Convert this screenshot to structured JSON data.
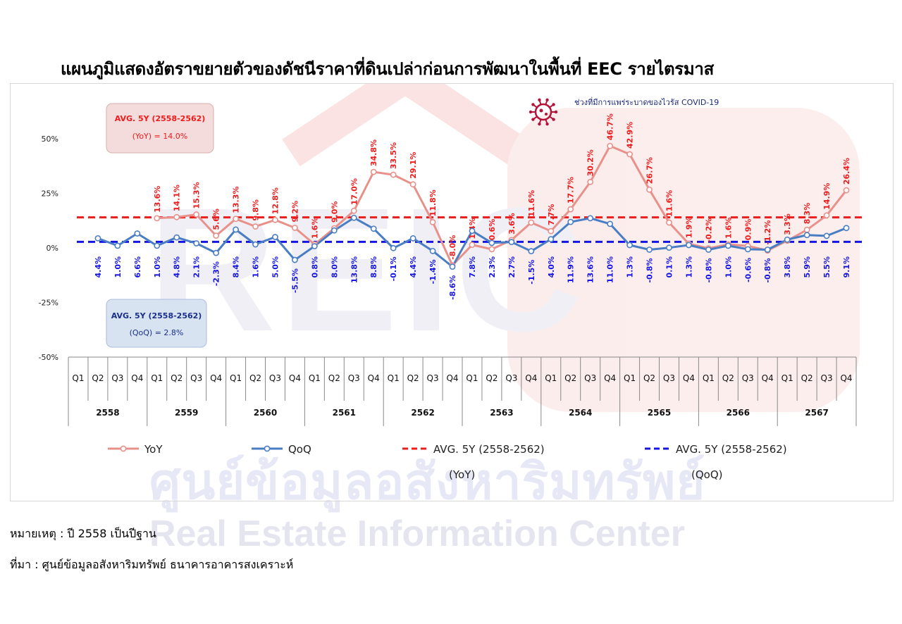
{
  "title": "แผนภูมิแสดงอัตราขยายตัวของดัชนีราคาที่ดินเปล่าก่อนการพัฒนาในพื้นที่ EEC รายไตรมาส",
  "note": "หมายเหตุ : ปี 2558 เป็นปีฐาน",
  "source": "ที่มา : ศูนย์ข้อมูลอสังหาริมทรัพย์ ธนาคารอาคารสงเคราะห์",
  "watermark": {
    "thai": "ศูนย์ข้อมูลอสังหาริมทรัพย์",
    "english": "Real Estate Information Center",
    "logo": "REIC"
  },
  "covid_label": "ช่วงที่มีการแพร่ระบาดของไวรัส COVID-19",
  "colors": {
    "yoy": "#e8908a",
    "qoq": "#4a7ec4",
    "avg_yoy": "#ee1c1c",
    "avg_qoq": "#1414e6",
    "yoy_label": "#ee1c1c",
    "qoq_label": "#1414e6",
    "covid_icon": "#b5123a"
  },
  "chart_data": {
    "type": "line",
    "y_ticks": [
      "50%",
      "25%",
      "0%",
      "-25%",
      "-50%"
    ],
    "y_tick_values": [
      50,
      25,
      0,
      -25,
      -50
    ],
    "ylim": [
      -50,
      50
    ],
    "quarters": [
      "Q1",
      "Q2",
      "Q3",
      "Q4"
    ],
    "years": [
      "2558",
      "2559",
      "2560",
      "2561",
      "2562",
      "2563",
      "2564",
      "2565",
      "2566",
      "2567"
    ],
    "series": [
      {
        "name": "YoY",
        "values": [
          null,
          null,
          null,
          null,
          13.6,
          14.1,
          15.3,
          5.6,
          13.3,
          9.8,
          12.8,
          9.2,
          1.6,
          9.0,
          17.0,
          34.8,
          33.5,
          29.1,
          11.8,
          -8.0,
          1.4,
          -0.6,
          3.6,
          11.6,
          7.7,
          17.7,
          30.2,
          46.7,
          42.9,
          26.7,
          11.6,
          1.9,
          -0.2,
          1.6,
          0.9,
          -1.2,
          3.3,
          8.3,
          14.9,
          26.4
        ],
        "labels": [
          null,
          null,
          null,
          null,
          "13.6%",
          "14.1%",
          "15.3%",
          "5.6%",
          "13.3%",
          "9.8%",
          "12.8%",
          "9.2%",
          "1.6%",
          "9.0%",
          "17.0%",
          "34.8%",
          "33.5%",
          "29.1%",
          "11.8%",
          "-8.0%",
          "1.4%",
          "-0.6%",
          "3.6%",
          "11.6%",
          "7.7%",
          "17.7%",
          "30.2%",
          "46.7%",
          "42.9%",
          "26.7%",
          "11.6%",
          "1.9%",
          "-0.2%",
          "1.6%",
          "0.9%",
          "-1.2%",
          "3.3%",
          "8.3%",
          "14.9%",
          "26.4%"
        ]
      },
      {
        "name": "QoQ",
        "values": [
          4.4,
          1.0,
          6.6,
          1.0,
          4.8,
          2.1,
          -2.3,
          8.4,
          1.6,
          5.0,
          -5.5,
          0.8,
          8.0,
          13.8,
          8.8,
          -0.1,
          4.4,
          -1.4,
          -8.6,
          7.8,
          2.3,
          2.7,
          -1.5,
          4.0,
          11.9,
          13.6,
          11.0,
          1.3,
          -0.8,
          0.1,
          1.3,
          -0.8,
          1.0,
          -0.6,
          -0.8,
          3.8,
          5.9,
          5.5,
          9.1
        ],
        "labels": [
          "4.4%",
          "1.0%",
          "6.6%",
          "1.0%",
          "4.8%",
          "2.1%",
          "-2.3%",
          "8.4%",
          "1.6%",
          "5.0%",
          "-5.5%",
          "0.8%",
          "8.0%",
          "13.8%",
          "8.8%",
          "-0.1%",
          "4.4%",
          "-1.4%",
          "-8.6%",
          "7.8%",
          "2.3%",
          "2.7%",
          "-1.5%",
          "4.0%",
          "11.9%",
          "13.6%",
          "11.0%",
          "1.3%",
          "-0.8%",
          "0.1%",
          "1.3%",
          "-0.8%",
          "1.0%",
          "-0.6%",
          "-0.8%",
          "3.8%",
          "5.9%",
          "5.5%",
          "9.1%"
        ],
        "start_index": 1
      }
    ],
    "avg_lines": [
      {
        "name": "AVG. 5Y (2558-2562)",
        "sub": "(YoY)",
        "value": 14.0,
        "box_line1": "AVG. 5Y (2558-2562)",
        "box_line2": "(YoY) = 14.0%"
      },
      {
        "name": "AVG. 5Y (2558-2562)",
        "sub": "(QoQ)",
        "value": 2.8,
        "box_line1": "AVG. 5Y (2558-2562)",
        "box_line2": "(QoQ) = 2.8%"
      }
    ],
    "legend": [
      {
        "label": "YoY",
        "sub": ""
      },
      {
        "label": "QoQ",
        "sub": ""
      },
      {
        "label": "AVG. 5Y (2558-2562)",
        "sub": "(YoY)"
      },
      {
        "label": "AVG. 5Y (2558-2562)",
        "sub": "(QoQ)"
      }
    ],
    "legend_position": "bottom"
  }
}
